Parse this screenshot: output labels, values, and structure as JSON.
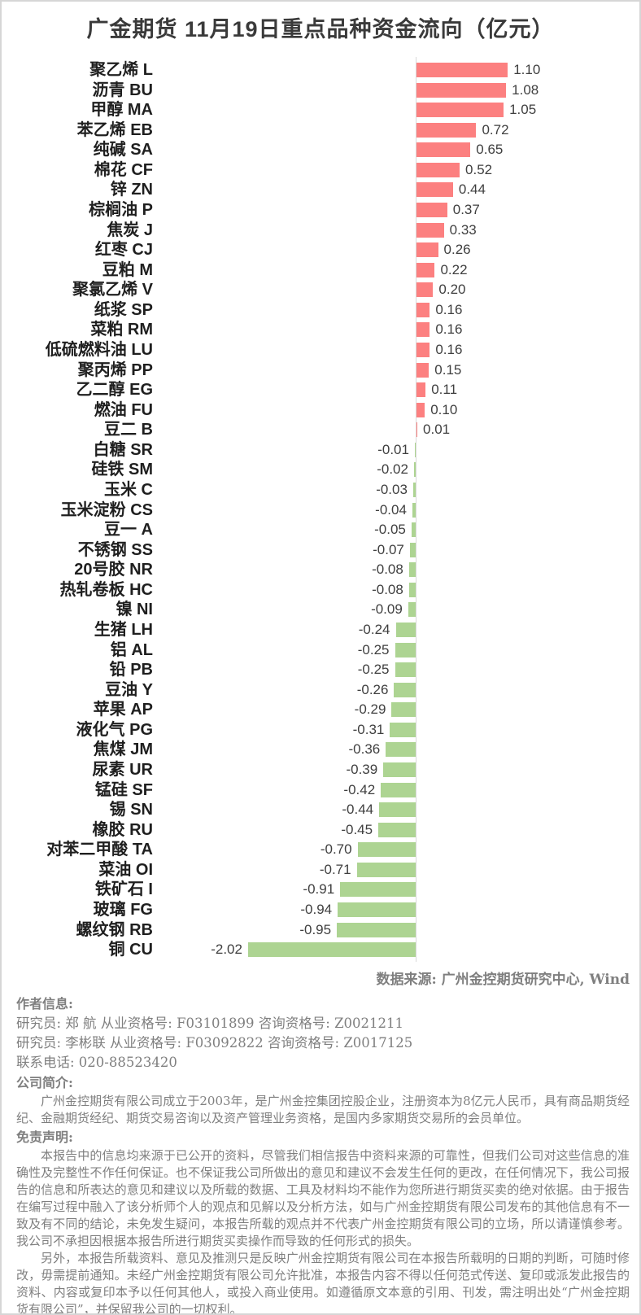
{
  "title": "广金期货 11月19日重点品种资金流向（亿元）",
  "chart_data": {
    "type": "bar",
    "orientation": "horizontal",
    "title": "广金期货 11月19日重点品种资金流向（亿元）",
    "unit": "亿元",
    "xlim": [
      -2.2,
      1.3
    ],
    "grid": false,
    "positive_color": "#FC8080",
    "negative_color": "#ADD492",
    "axis_color": "#d9d9d9",
    "categories": [
      "聚乙烯 L",
      "沥青 BU",
      "甲醇 MA",
      "苯乙烯 EB",
      "纯碱 SA",
      "棉花 CF",
      "锌 ZN",
      "棕榈油 P",
      "焦炭 J",
      "红枣 CJ",
      "豆粕 M",
      "聚氯乙烯 V",
      "纸浆 SP",
      "菜粕 RM",
      "低硫燃料油 LU",
      "聚丙烯 PP",
      "乙二醇 EG",
      "燃油 FU",
      "豆二 B",
      "白糖 SR",
      "硅铁 SM",
      "玉米 C",
      "玉米淀粉 CS",
      "豆一 A",
      "不锈钢 SS",
      "20号胶 NR",
      "热轧卷板 HC",
      "镍 NI",
      "生猪 LH",
      "铝 AL",
      "铅 PB",
      "豆油 Y",
      "苹果 AP",
      "液化气 PG",
      "焦煤 JM",
      "尿素 UR",
      "锰硅 SF",
      "锡 SN",
      "橡胶 RU",
      "对苯二甲酸 TA",
      "菜油 OI",
      "铁矿石 I",
      "玻璃 FG",
      "螺纹钢 RB",
      "铜 CU"
    ],
    "values": [
      1.1,
      1.08,
      1.05,
      0.72,
      0.65,
      0.52,
      0.44,
      0.37,
      0.33,
      0.26,
      0.22,
      0.2,
      0.16,
      0.16,
      0.16,
      0.15,
      0.11,
      0.1,
      0.01,
      -0.01,
      -0.02,
      -0.03,
      -0.04,
      -0.05,
      -0.07,
      -0.08,
      -0.08,
      -0.09,
      -0.24,
      -0.25,
      -0.25,
      -0.26,
      -0.29,
      -0.31,
      -0.36,
      -0.39,
      -0.42,
      -0.44,
      -0.45,
      -0.7,
      -0.71,
      -0.91,
      -0.94,
      -0.95,
      -2.02
    ]
  },
  "footer": {
    "data_source": "数据来源: 广州金控期货研究中心, Wind",
    "author_section_title": "作者信息:",
    "authors": [
      {
        "line": "研究员: 郑 航    从业资格号: F03101899  咨询资格号: Z0021211"
      },
      {
        "line": "研究员: 李彬联   从业资格号: F03092822  咨询资格号: Z0017125"
      }
    ],
    "contact": "联系电话: 020-88523420",
    "company_section_title": "公司简介:",
    "company_intro": "广州金控期货有限公司成立于2003年，是广州金控集团控股企业，注册资本为8亿元人民币，具有商品期货经纪、金融期货经纪、期货交易咨询以及资产管理业务资格，是国内多家期货交易所的会员单位。",
    "disclaimer_section_title": "免责声明:",
    "disclaimer_paragraphs": [
      "本报告中的信息均来源于已公开的资料，尽管我们相信报告中资料来源的可靠性，但我们公司对这些信息的准确性及完整性不作任何保证。也不保证我公司所做出的意见和建议不会发生任何的更改，在任何情况下，我公司报告的信息和所表达的意见和建议以及所载的数据、工具及材料均不能作为您所进行期货买卖的绝对依据。由于报告在编写过程中融入了该分析师个人的观点和见解以及分析方法，如与广州金控期货有限公司发布的其他信息有不一致及有不同的结论，未免发生疑问，本报告所载的观点并不代表广州金控期货有限公司的立场，所以请谨慎参考。我公司不承担因根据本报告所进行期货买卖操作而导致的任何形式的损失。",
      "另外，本报告所载资料、意见及推测只是反映广州金控期货有限公司在本报告所载明的日期的判断，可随时修改，毋需提前通知。未经广州金控期货有限公司允许批准，本报告内容不得以任何范式传送、复印或派发此报告的资料、内容或复印本予以任何其他人，或投入商业使用。如遵循原文本意的引用、刊发，需注明出处“广州金控期货有限公司”，并保留我公司的一切权利。"
    ]
  }
}
